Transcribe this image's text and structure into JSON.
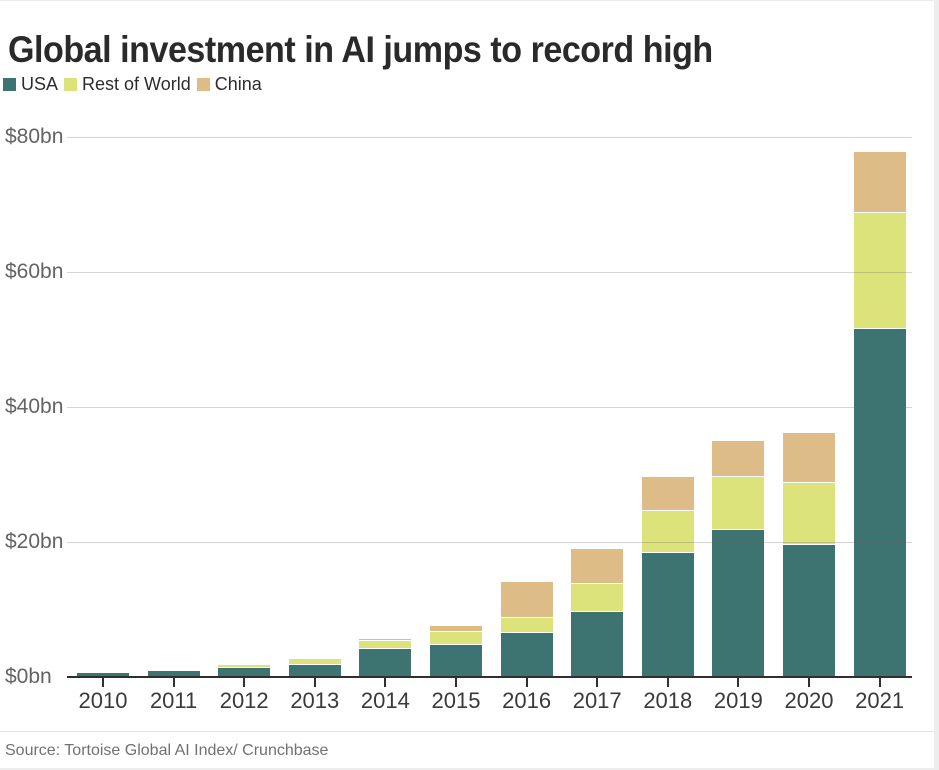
{
  "title": "Global investment in AI jumps to record high",
  "source": "Source: Tortoise Global AI Index/ Crunchbase",
  "colors": {
    "usa": "#3d7472",
    "rest_of_world": "#dde37b",
    "china": "#debc88",
    "axis_line": "#2f2f2f",
    "gridline": "#d6d6d6",
    "title_text": "#2a2a2a",
    "tick_text": "#636363",
    "source_text": "#717171"
  },
  "chart_data": {
    "type": "bar",
    "stacked": true,
    "title": "Global investment in AI jumps to record high",
    "xlabel": "",
    "ylabel": "",
    "grid": "horizontal",
    "legend_position": "top-left",
    "ylim": [
      0,
      80
    ],
    "categories": [
      "2010",
      "2011",
      "2012",
      "2013",
      "2014",
      "2015",
      "2016",
      "2017",
      "2018",
      "2019",
      "2020",
      "2021"
    ],
    "series": [
      {
        "name": "USA",
        "color": "#3d7472",
        "values": [
          0.7,
          1.0,
          1.4,
          1.8,
          4.1,
          4.8,
          6.5,
          9.6,
          18.4,
          21.8,
          19.5,
          51.5
        ]
      },
      {
        "name": "Rest of World",
        "color": "#dde37b",
        "values": [
          0.1,
          0.1,
          0.4,
          0.8,
          1.2,
          1.8,
          2.2,
          4.2,
          6.2,
          7.9,
          9.2,
          17.2
        ]
      },
      {
        "name": "China",
        "color": "#debc88",
        "values": [
          0.0,
          0.0,
          0.1,
          0.2,
          0.3,
          0.9,
          5.4,
          5.1,
          5.0,
          5.3,
          7.4,
          9.1
        ]
      }
    ],
    "yticks": [
      {
        "value": 0,
        "label": "$0bn"
      },
      {
        "value": 20,
        "label": "$20bn"
      },
      {
        "value": 40,
        "label": "$40bn"
      },
      {
        "value": 60,
        "label": "$60bn"
      },
      {
        "value": 80,
        "label": "$80bn"
      }
    ]
  }
}
